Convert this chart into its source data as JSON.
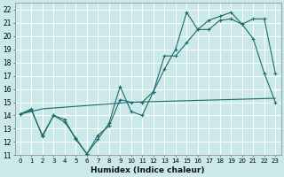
{
  "xlabel": "Humidex (Indice chaleur)",
  "xlim": [
    -0.5,
    23.5
  ],
  "ylim": [
    11,
    22.5
  ],
  "yticks": [
    11,
    12,
    13,
    14,
    15,
    16,
    17,
    18,
    19,
    20,
    21,
    22
  ],
  "xticks": [
    0,
    1,
    2,
    3,
    4,
    5,
    6,
    7,
    8,
    9,
    10,
    11,
    12,
    13,
    14,
    15,
    16,
    17,
    18,
    19,
    20,
    21,
    22,
    23
  ],
  "bg_color": "#cce9e9",
  "line_color": "#1a6b6b",
  "grid_color": "#ffffff",
  "line1_x": [
    0,
    1,
    2,
    3,
    4,
    5,
    6,
    7,
    8,
    9,
    10,
    11,
    12,
    13,
    14,
    15,
    16,
    17,
    18,
    19,
    20,
    21,
    22,
    23
  ],
  "line1_y": [
    14.1,
    14.4,
    12.5,
    14.0,
    13.7,
    12.2,
    11.1,
    12.2,
    13.4,
    16.2,
    14.3,
    14.0,
    15.8,
    18.5,
    18.5,
    19.5,
    20.5,
    20.5,
    21.2,
    21.3,
    20.9,
    19.8,
    17.2,
    15.0
  ],
  "line2_x": [
    0,
    1,
    2,
    3,
    4,
    5,
    6,
    7,
    8,
    9,
    10,
    11,
    12,
    13,
    14,
    15,
    16,
    17,
    18,
    19,
    20,
    21,
    22,
    23
  ],
  "line2_y": [
    14.1,
    14.5,
    12.4,
    14.0,
    13.5,
    12.3,
    11.1,
    12.5,
    13.2,
    15.2,
    15.0,
    15.0,
    15.8,
    17.5,
    19.0,
    21.8,
    20.5,
    21.2,
    21.5,
    21.8,
    20.9,
    21.3,
    21.3,
    17.2
  ],
  "line3_x": [
    0,
    2,
    10,
    23
  ],
  "line3_y": [
    14.1,
    14.5,
    15.0,
    15.3
  ]
}
